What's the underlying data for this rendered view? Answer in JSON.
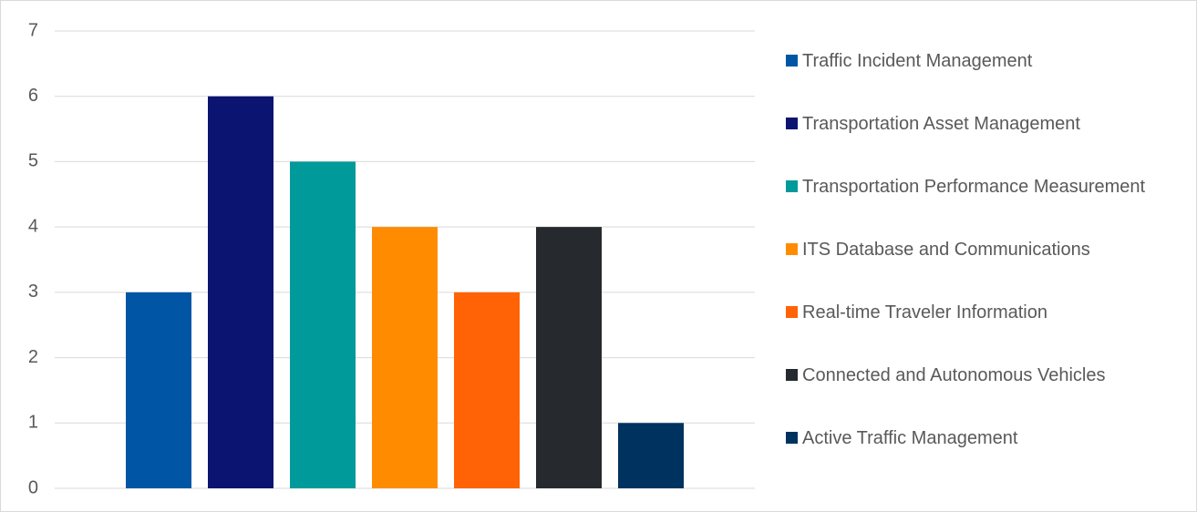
{
  "chart_data": {
    "type": "bar",
    "series": [
      {
        "name": "Traffic Incident Management",
        "color": "#0055a4",
        "values": [
          3
        ]
      },
      {
        "name": "Transportation Asset Management",
        "color": "#0b1470",
        "values": [
          6
        ]
      },
      {
        "name": "Transportation Performance Measurement",
        "color": "#009a9a",
        "values": [
          5
        ]
      },
      {
        "name": "ITS Database and Communications",
        "color": "#ff8c00",
        "values": [
          4
        ]
      },
      {
        "name": "Real-time Traveler Information",
        "color": "#ff6305",
        "values": [
          3
        ]
      },
      {
        "name": "Connected and Autonomous Vehicles",
        "color": "#26292d",
        "values": [
          4
        ]
      },
      {
        "name": "Active Traffic Management",
        "color": "#00325f",
        "values": [
          1
        ]
      }
    ],
    "ylim": [
      0,
      7
    ],
    "yticks": [
      0,
      1,
      2,
      3,
      4,
      5,
      6,
      7
    ],
    "grid": true,
    "legend": "right"
  }
}
